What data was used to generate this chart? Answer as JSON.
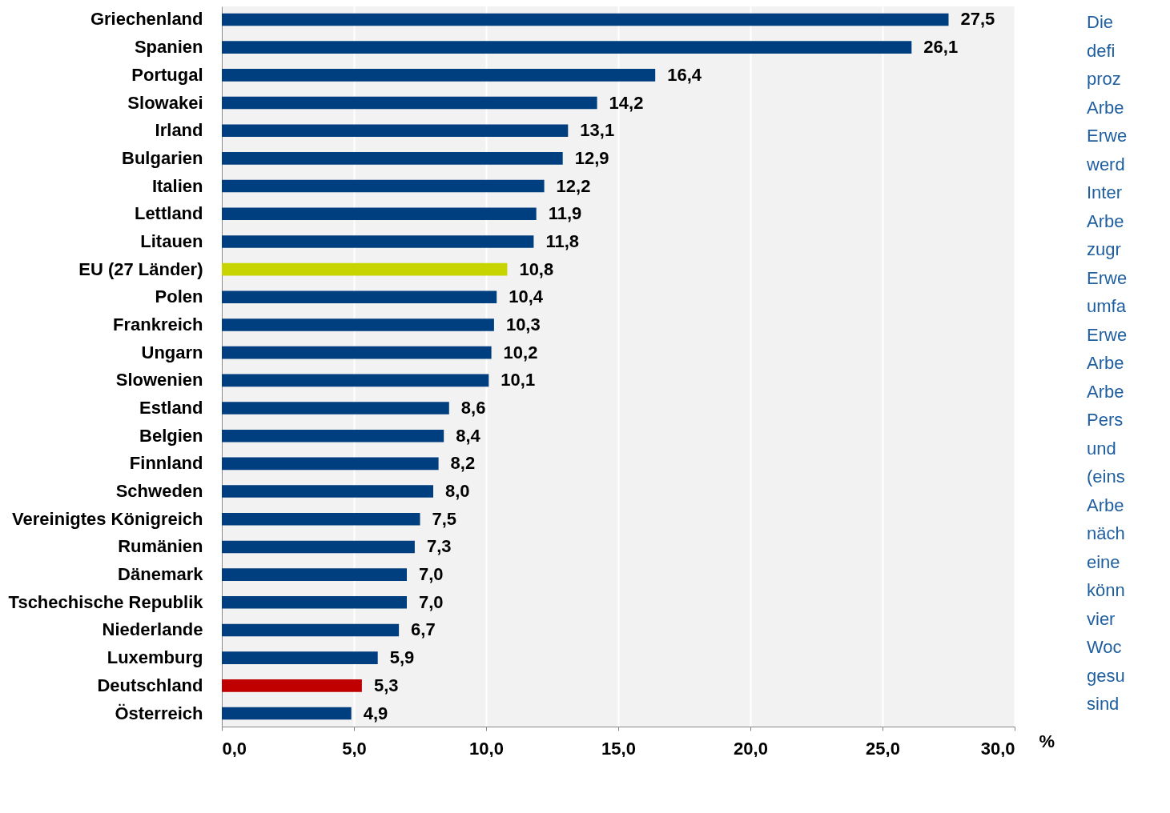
{
  "chart_data": {
    "type": "bar",
    "orientation": "horizontal",
    "categories": [
      "Griechenland",
      "Spanien",
      "Portugal",
      "Slowakei",
      "Irland",
      "Bulgarien",
      "Italien",
      "Lettland",
      "Litauen",
      "EU (27 Länder)",
      "Polen",
      "Frankreich",
      "Ungarn",
      "Slowenien",
      "Estland",
      "Belgien",
      "Finnland",
      "Schweden",
      "Vereinigtes Königreich",
      "Rumänien",
      "Dänemark",
      "Tschechische Republik",
      "Niederlande",
      "Luxemburg",
      "Deutschland",
      "Österreich"
    ],
    "values": [
      27.5,
      26.1,
      16.4,
      14.2,
      13.1,
      12.9,
      12.2,
      11.9,
      11.8,
      10.8,
      10.4,
      10.3,
      10.2,
      10.1,
      8.6,
      8.4,
      8.2,
      8.0,
      7.5,
      7.3,
      7.0,
      7.0,
      6.7,
      5.9,
      5.3,
      4.9
    ],
    "value_labels": [
      "27,5",
      "26,1",
      "16,4",
      "14,2",
      "13,1",
      "12,9",
      "12,2",
      "11,9",
      "11,8",
      "10,8",
      "10,4",
      "10,3",
      "10,2",
      "10,1",
      "8,6",
      "8,4",
      "8,2",
      "8,0",
      "7,5",
      "7,3",
      "7,0",
      "7,0",
      "6,7",
      "5,9",
      "5,3",
      "4,9"
    ],
    "colors": [
      "#003f7f",
      "#003f7f",
      "#003f7f",
      "#003f7f",
      "#003f7f",
      "#003f7f",
      "#003f7f",
      "#003f7f",
      "#003f7f",
      "#c8d400",
      "#003f7f",
      "#003f7f",
      "#003f7f",
      "#003f7f",
      "#003f7f",
      "#003f7f",
      "#003f7f",
      "#003f7f",
      "#003f7f",
      "#003f7f",
      "#003f7f",
      "#003f7f",
      "#003f7f",
      "#003f7f",
      "#c00000",
      "#003f7f"
    ],
    "xlim": [
      0,
      30
    ],
    "xticks": [
      {
        "value": 0,
        "label": "0,0"
      },
      {
        "value": 5,
        "label": "5,0"
      },
      {
        "value": 10,
        "label": "10,0"
      },
      {
        "value": 15,
        "label": "15,0"
      },
      {
        "value": 20,
        "label": "20,0"
      },
      {
        "value": 25,
        "label": "25,0"
      },
      {
        "value": 30,
        "label": "30,0"
      }
    ],
    "xlabel": "%",
    "grid": "x",
    "annotations": [
      "Die\ndefi\nproz\nArbe\nErwe\nwerd\nInter\nArbe\nzugr\nErwe\numfa\nErwe\nArbe\nArbe\nPers\nund\n(eins\nArbe\nnäch\neine\nkönn\nvier\nWoc\ngesu\nsind"
    ]
  }
}
